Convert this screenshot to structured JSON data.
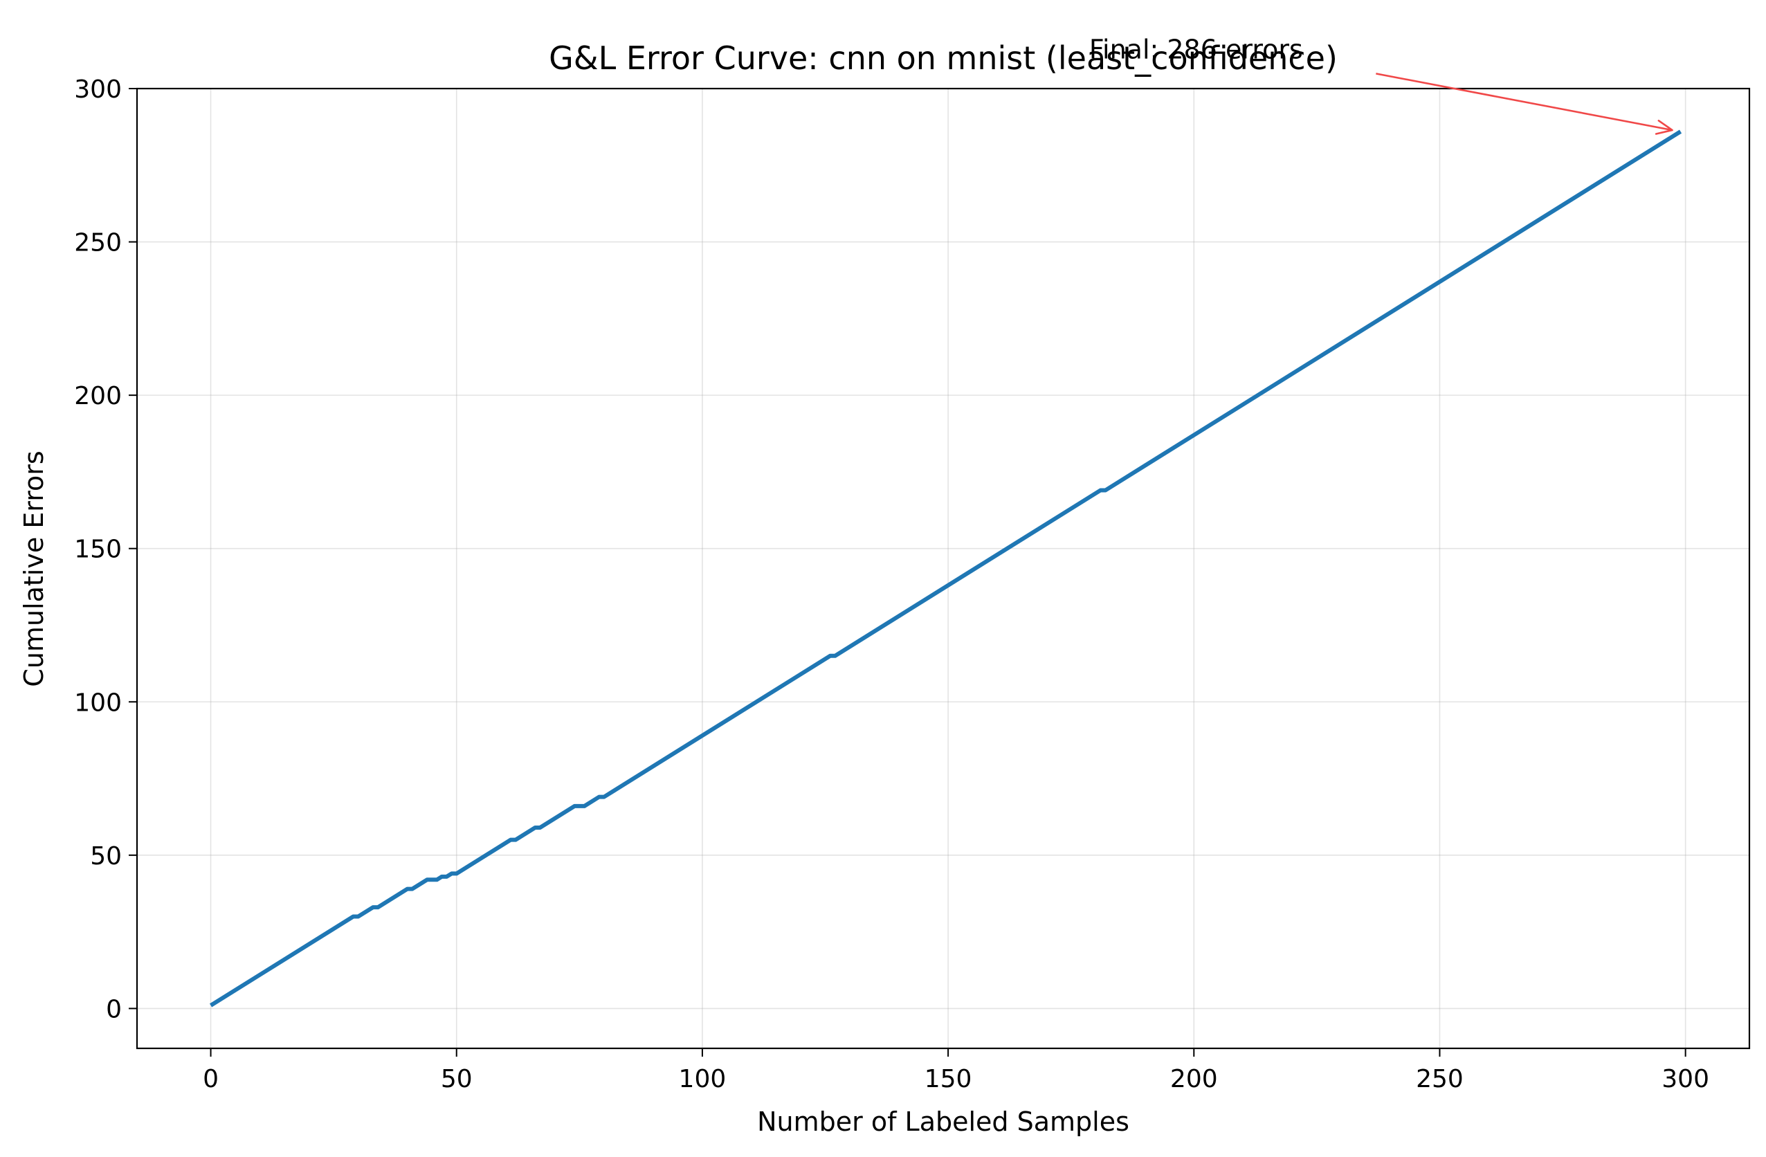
{
  "chart_data": {
    "type": "line",
    "title": "G&L Error Curve: cnn on mnist (least_confidence)",
    "xlabel": "Number of Labeled Samples",
    "ylabel": "Cumulative Errors",
    "xlim": [
      -15,
      313
    ],
    "ylim": [
      -13,
      300
    ],
    "xticks": [
      0,
      50,
      100,
      150,
      200,
      250,
      300
    ],
    "yticks": [
      0,
      50,
      100,
      150,
      200,
      250,
      300
    ],
    "x_tick_labels": [
      "0",
      "50",
      "100",
      "150",
      "200",
      "250",
      "300"
    ],
    "y_tick_labels": [
      "0",
      "50",
      "100",
      "150",
      "200",
      "250",
      "300"
    ],
    "grid": true,
    "series": [
      {
        "color": "#1f77b4",
        "points": [
          [
            0,
            1
          ],
          [
            29,
            30
          ],
          [
            30,
            30
          ],
          [
            33,
            33
          ],
          [
            34,
            33
          ],
          [
            40,
            39
          ],
          [
            41,
            39
          ],
          [
            44,
            42
          ],
          [
            46,
            42
          ],
          [
            47,
            43
          ],
          [
            48,
            43
          ],
          [
            49,
            44
          ],
          [
            50,
            44
          ],
          [
            61,
            55
          ],
          [
            62,
            55
          ],
          [
            66,
            59
          ],
          [
            67,
            59
          ],
          [
            74,
            66
          ],
          [
            76,
            66
          ],
          [
            79,
            69
          ],
          [
            80,
            69
          ],
          [
            126,
            115
          ],
          [
            127,
            115
          ],
          [
            181,
            169
          ],
          [
            182,
            169
          ],
          [
            299,
            286
          ]
        ]
      }
    ],
    "annotation": {
      "text": "Final: 286 errors",
      "target": [
        299,
        286
      ],
      "text_anchor_data": [
        249,
        313
      ],
      "color": "#f04848"
    }
  }
}
